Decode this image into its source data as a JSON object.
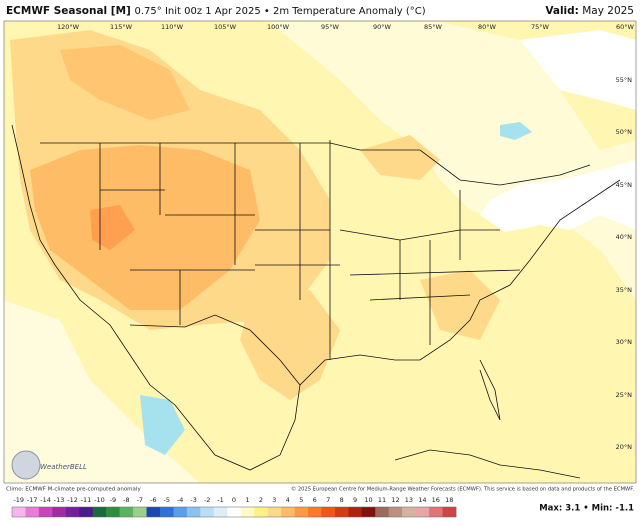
{
  "header": {
    "title": "ECMWF Seasonal [M]",
    "subtitle": "0.75° Init 00z 1 Apr 2025 • 2m Temperature Anomaly (°C)",
    "valid_label": "Valid:",
    "valid": "May 2025"
  },
  "map": {
    "longitude_labels": [
      "120°W",
      "115°W",
      "110°W",
      "105°W",
      "100°W",
      "95°W",
      "90°W",
      "85°W",
      "80°W",
      "75°W",
      "60°W"
    ],
    "latitude_labels": [
      "55°N",
      "50°N",
      "45°N",
      "40°N",
      "35°N",
      "30°N",
      "25°N",
      "20°N"
    ],
    "logo": "WeatherBELL"
  },
  "footer": {
    "climo": "Climo: ECMWF M-climate pre-computed anomaly",
    "copyright": "© 2025 European Centre for Medium-Range Weather Forecasts (ECMWF). This service is based on data and products of the ECMWF.",
    "maxmin": "Max: 3.1 • Min: -1.1"
  },
  "legend": {
    "labels": [
      "-19",
      "-17",
      "-14",
      "-13",
      "-12",
      "-11",
      "-10",
      "-9",
      "-8",
      "-7",
      "-6",
      "-5",
      "-4",
      "-3",
      "-2",
      "-1",
      "0",
      "1",
      "2",
      "3",
      "4",
      "5",
      "6",
      "7",
      "8",
      "9",
      "10",
      "11",
      "12",
      "13",
      "14",
      "16",
      "18"
    ],
    "colors": [
      "#f6b6ec",
      "#e87ad8",
      "#cc44bc",
      "#a02ca4",
      "#74209c",
      "#4c1c8c",
      "#1c6a3c",
      "#2e8e3e",
      "#5cb45c",
      "#9ad08a",
      "#1c46b4",
      "#2e72d8",
      "#5a9ee8",
      "#8cc2f0",
      "#b8def6",
      "#dceff9",
      "#ffffff",
      "#fffbc4",
      "#fff08a",
      "#ffd98a",
      "#ffbc66",
      "#ff9a44",
      "#ff7a26",
      "#f25614",
      "#d63a10",
      "#b0200e",
      "#80140c",
      "#9a6c5c",
      "#bc9080",
      "#d6b2a4",
      "#e6a6a6",
      "#e07474",
      "#cc4444"
    ]
  }
}
